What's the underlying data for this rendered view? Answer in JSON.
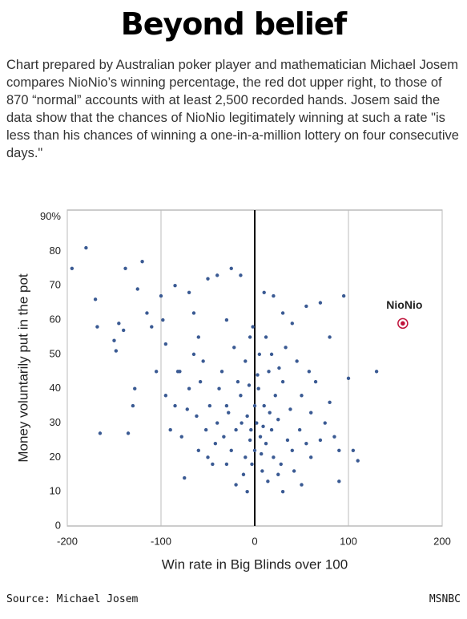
{
  "title": "Beyond belief",
  "description": "Chart prepared by Australian poker player and mathematician Michael Josem compares NioNio’s winning percentage, the red dot upper right, to those of 870 “normal” accounts with at least 2,500 recorded hands. Josem said the data show that the chances of NioNio legitimately winning at such a rate \"is less than his chances of winning a one-in-a-million lottery on four consecutive days.\"",
  "chart_data": {
    "type": "scatter",
    "x_label": "Win rate in Big Blinds over 100",
    "y_label": "Money voluntarily put in the pot",
    "xlim": [
      -200,
      200
    ],
    "xticks": [
      -200,
      -100,
      0,
      100,
      200
    ],
    "ylim": [
      0,
      92
    ],
    "yticks": [
      0,
      10,
      20,
      30,
      40,
      50,
      60,
      70,
      80,
      {
        "value": 90,
        "label": "90%"
      }
    ],
    "color": "#3a5a93",
    "grid": true,
    "x": [
      -195,
      -180,
      -170,
      -168,
      -165,
      -150,
      -148,
      -145,
      -140,
      -138,
      -135,
      -130,
      -128,
      -125,
      -120,
      -115,
      -110,
      -100,
      -95,
      -85,
      -80,
      -75,
      -70,
      -60,
      -50,
      -40,
      -30,
      -25,
      -15,
      -10,
      -5,
      10,
      20,
      30,
      40,
      55,
      70,
      80,
      95,
      100,
      105,
      110,
      130,
      90,
      60,
      75,
      50,
      30,
      -20,
      -45,
      -60,
      -85,
      -90,
      -70,
      -55,
      -35,
      -40,
      -30,
      -25,
      -20,
      -15,
      -10,
      -8,
      -5,
      -3,
      0,
      2,
      4,
      6,
      8,
      10,
      12,
      15,
      18,
      20,
      22,
      25,
      28,
      30,
      35,
      38,
      40,
      45,
      48,
      50,
      55,
      60,
      65,
      70,
      80,
      85,
      90,
      -12,
      -18,
      -22,
      -28,
      -33,
      -38,
      -42,
      -48,
      -52,
      -58,
      -62,
      -65,
      -72,
      -78,
      -82,
      -95,
      -105,
      -98,
      -65,
      5,
      12,
      -2,
      18,
      25,
      -8,
      0,
      3,
      -6,
      7,
      14,
      33,
      42,
      58,
      -30,
      -50,
      26,
      -14,
      16,
      -4,
      9
    ],
    "values": [
      75,
      81,
      66,
      58,
      27,
      54,
      51,
      59,
      57,
      75,
      27,
      35,
      40,
      69,
      77,
      62,
      58,
      67,
      53,
      70,
      45,
      14,
      68,
      55,
      72,
      73,
      60,
      75,
      73,
      48,
      55,
      68,
      67,
      62,
      59,
      64,
      65,
      55,
      67,
      43,
      22,
      19,
      45,
      13,
      20,
      30,
      12,
      10,
      12,
      18,
      22,
      35,
      28,
      40,
      48,
      45,
      30,
      35,
      22,
      28,
      38,
      20,
      32,
      25,
      18,
      22,
      30,
      40,
      26,
      16,
      35,
      24,
      45,
      28,
      20,
      38,
      31,
      18,
      42,
      25,
      34,
      22,
      48,
      28,
      38,
      24,
      33,
      42,
      25,
      36,
      26,
      22,
      15,
      42,
      52,
      33,
      26,
      40,
      24,
      35,
      28,
      42,
      32,
      50,
      34,
      26,
      45,
      38,
      45,
      60,
      62,
      50,
      55,
      58,
      50,
      15,
      10,
      35,
      44,
      41,
      21,
      13,
      52,
      16,
      45,
      18,
      20,
      46,
      30,
      33,
      28,
      29
    ],
    "highlight": {
      "label": "NioNio",
      "x": 158,
      "value": 59,
      "color": "#c0143c"
    }
  },
  "footer": {
    "source": "Source: Michael Josem",
    "credit": "MSNBC"
  }
}
